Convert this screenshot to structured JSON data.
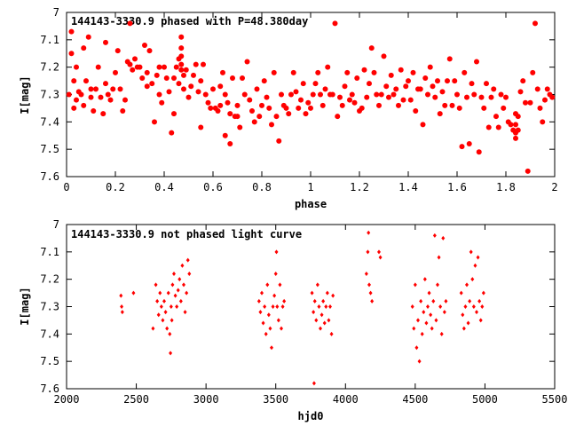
{
  "chart_data": [
    {
      "type": "scatter",
      "title": "144143-3330.9 phased with P=48.380day",
      "xlabel": "phase",
      "ylabel": "I[mag]",
      "xlim": [
        0,
        2
      ],
      "ylim": [
        7.6,
        7
      ],
      "y_inverted": true,
      "grid": false,
      "marker": "filled-circle",
      "color": "#ff0000",
      "x_ticks": [
        "0",
        "0.2",
        "0.4",
        "0.6",
        "0.8",
        "1",
        "1.2",
        "1.4",
        "1.6",
        "1.8",
        "2"
      ],
      "y_ticks": [
        "7",
        "7.1",
        "7.2",
        "7.3",
        "7.4",
        "7.5",
        "7.6"
      ],
      "points": [
        [
          0.01,
          7.3
        ],
        [
          0.02,
          7.07
        ],
        [
          0.02,
          7.15
        ],
        [
          0.03,
          7.25
        ],
        [
          0.03,
          7.35
        ],
        [
          0.04,
          7.2
        ],
        [
          0.04,
          7.32
        ],
        [
          0.05,
          7.29
        ],
        [
          0.06,
          7.3
        ],
        [
          0.07,
          7.34
        ],
        [
          0.07,
          7.13
        ],
        [
          0.08,
          7.25
        ],
        [
          0.09,
          7.09
        ],
        [
          0.1,
          7.28
        ],
        [
          0.1,
          7.31
        ],
        [
          0.11,
          7.36
        ],
        [
          0.12,
          7.28
        ],
        [
          0.13,
          7.2
        ],
        [
          0.14,
          7.31
        ],
        [
          0.15,
          7.37
        ],
        [
          0.16,
          7.11
        ],
        [
          0.16,
          7.26
        ],
        [
          0.17,
          7.3
        ],
        [
          0.18,
          7.32
        ],
        [
          0.19,
          7.28
        ],
        [
          0.2,
          7.22
        ],
        [
          0.21,
          7.14
        ],
        [
          0.22,
          7.28
        ],
        [
          0.23,
          7.36
        ],
        [
          0.24,
          7.32
        ],
        [
          0.25,
          7.18
        ],
        [
          0.26,
          7.19
        ],
        [
          0.26,
          7.04
        ],
        [
          0.27,
          7.21
        ],
        [
          0.28,
          7.17
        ],
        [
          0.29,
          7.2
        ],
        [
          0.3,
          7.2
        ],
        [
          0.31,
          7.24
        ],
        [
          0.32,
          7.12
        ],
        [
          0.33,
          7.27
        ],
        [
          0.33,
          7.22
        ],
        [
          0.34,
          7.14
        ],
        [
          0.35,
          7.26
        ],
        [
          0.36,
          7.4
        ],
        [
          0.37,
          7.23
        ],
        [
          0.38,
          7.2
        ],
        [
          0.38,
          7.3
        ],
        [
          0.39,
          7.33
        ],
        [
          0.4,
          7.2
        ],
        [
          0.41,
          7.24
        ],
        [
          0.42,
          7.29
        ],
        [
          0.43,
          7.44
        ],
        [
          0.44,
          7.24
        ],
        [
          0.44,
          7.37
        ],
        [
          0.45,
          7.2
        ],
        [
          0.46,
          7.17
        ],
        [
          0.46,
          7.26
        ],
        [
          0.47,
          7.09
        ],
        [
          0.47,
          7.13
        ],
        [
          0.47,
          7.16
        ],
        [
          0.47,
          7.19
        ],
        [
          0.47,
          7.21
        ],
        [
          0.48,
          7.23
        ],
        [
          0.48,
          7.28
        ],
        [
          0.49,
          7.21
        ],
        [
          0.5,
          7.31
        ],
        [
          0.51,
          7.27
        ],
        [
          0.52,
          7.23
        ],
        [
          0.53,
          7.19
        ],
        [
          0.54,
          7.29
        ],
        [
          0.55,
          7.25
        ],
        [
          0.55,
          7.42
        ],
        [
          0.56,
          7.19
        ],
        [
          0.57,
          7.3
        ],
        [
          0.58,
          7.33
        ],
        [
          0.59,
          7.35
        ],
        [
          0.6,
          7.28
        ],
        [
          0.61,
          7.35
        ],
        [
          0.62,
          7.36
        ],
        [
          0.63,
          7.27
        ],
        [
          0.63,
          7.34
        ],
        [
          0.64,
          7.22
        ],
        [
          0.65,
          7.3
        ],
        [
          0.65,
          7.45
        ],
        [
          0.66,
          7.33
        ],
        [
          0.67,
          7.37
        ],
        [
          0.67,
          7.48
        ],
        [
          0.68,
          7.24
        ],
        [
          0.69,
          7.38
        ],
        [
          0.7,
          7.38
        ],
        [
          0.7,
          7.34
        ],
        [
          0.71,
          7.42
        ],
        [
          0.72,
          7.24
        ],
        [
          0.73,
          7.3
        ],
        [
          0.74,
          7.18
        ],
        [
          0.75,
          7.32
        ],
        [
          0.76,
          7.36
        ],
        [
          0.77,
          7.4
        ],
        [
          0.78,
          7.28
        ],
        [
          0.79,
          7.38
        ],
        [
          0.8,
          7.34
        ],
        [
          0.81,
          7.25
        ],
        [
          0.82,
          7.31
        ],
        [
          0.83,
          7.35
        ],
        [
          0.84,
          7.41
        ],
        [
          0.85,
          7.22
        ],
        [
          0.86,
          7.38
        ],
        [
          0.87,
          7.47
        ],
        [
          0.88,
          7.3
        ],
        [
          0.89,
          7.34
        ],
        [
          0.9,
          7.35
        ],
        [
          0.91,
          7.37
        ],
        [
          0.92,
          7.3
        ],
        [
          0.93,
          7.22
        ],
        [
          0.94,
          7.29
        ],
        [
          0.95,
          7.35
        ],
        [
          0.96,
          7.32
        ],
        [
          0.97,
          7.26
        ],
        [
          0.98,
          7.37
        ],
        [
          0.99,
          7.33
        ],
        [
          1.0,
          7.35
        ],
        [
          1.01,
          7.3
        ],
        [
          1.02,
          7.26
        ],
        [
          1.03,
          7.22
        ],
        [
          1.04,
          7.3
        ],
        [
          1.05,
          7.34
        ],
        [
          1.06,
          7.28
        ],
        [
          1.07,
          7.2
        ],
        [
          1.08,
          7.3
        ],
        [
          1.09,
          7.3
        ],
        [
          1.1,
          7.04
        ],
        [
          1.11,
          7.38
        ],
        [
          1.12,
          7.31
        ],
        [
          1.13,
          7.34
        ],
        [
          1.14,
          7.27
        ],
        [
          1.15,
          7.22
        ],
        [
          1.16,
          7.32
        ],
        [
          1.17,
          7.3
        ],
        [
          1.18,
          7.33
        ],
        [
          1.19,
          7.24
        ],
        [
          1.2,
          7.36
        ],
        [
          1.21,
          7.35
        ],
        [
          1.22,
          7.21
        ],
        [
          1.23,
          7.31
        ],
        [
          1.24,
          7.26
        ],
        [
          1.25,
          7.13
        ],
        [
          1.26,
          7.22
        ],
        [
          1.27,
          7.3
        ],
        [
          1.28,
          7.34
        ],
        [
          1.29,
          7.3
        ],
        [
          1.3,
          7.16
        ],
        [
          1.31,
          7.27
        ],
        [
          1.32,
          7.31
        ],
        [
          1.33,
          7.23
        ],
        [
          1.34,
          7.3
        ],
        [
          1.35,
          7.28
        ],
        [
          1.36,
          7.34
        ],
        [
          1.37,
          7.21
        ],
        [
          1.38,
          7.32
        ],
        [
          1.39,
          7.27
        ],
        [
          1.4,
          7.25
        ],
        [
          1.41,
          7.32
        ],
        [
          1.42,
          7.22
        ],
        [
          1.43,
          7.36
        ],
        [
          1.44,
          7.28
        ],
        [
          1.45,
          7.28
        ],
        [
          1.46,
          7.41
        ],
        [
          1.47,
          7.24
        ],
        [
          1.48,
          7.3
        ],
        [
          1.49,
          7.2
        ],
        [
          1.5,
          7.27
        ],
        [
          1.51,
          7.31
        ],
        [
          1.52,
          7.25
        ],
        [
          1.53,
          7.37
        ],
        [
          1.54,
          7.29
        ],
        [
          1.55,
          7.34
        ],
        [
          1.56,
          7.25
        ],
        [
          1.57,
          7.17
        ],
        [
          1.58,
          7.34
        ],
        [
          1.59,
          7.25
        ],
        [
          1.6,
          7.3
        ],
        [
          1.61,
          7.35
        ],
        [
          1.62,
          7.49
        ],
        [
          1.63,
          7.22
        ],
        [
          1.64,
          7.31
        ],
        [
          1.65,
          7.48
        ],
        [
          1.66,
          7.26
        ],
        [
          1.67,
          7.3
        ],
        [
          1.68,
          7.18
        ],
        [
          1.69,
          7.51
        ],
        [
          1.7,
          7.31
        ],
        [
          1.71,
          7.35
        ],
        [
          1.72,
          7.26
        ],
        [
          1.73,
          7.42
        ],
        [
          1.74,
          7.31
        ],
        [
          1.75,
          7.28
        ],
        [
          1.76,
          7.38
        ],
        [
          1.77,
          7.42
        ],
        [
          1.78,
          7.3
        ],
        [
          1.79,
          7.35
        ],
        [
          1.8,
          7.31
        ],
        [
          1.81,
          7.4
        ],
        [
          1.82,
          7.41
        ],
        [
          1.83,
          7.43
        ],
        [
          1.84,
          7.37
        ],
        [
          1.84,
          7.41
        ],
        [
          1.84,
          7.44
        ],
        [
          1.84,
          7.46
        ],
        [
          1.85,
          7.38
        ],
        [
          1.85,
          7.43
        ],
        [
          1.86,
          7.29
        ],
        [
          1.87,
          7.25
        ],
        [
          1.88,
          7.33
        ],
        [
          1.89,
          7.58
        ],
        [
          1.9,
          7.33
        ],
        [
          1.91,
          7.22
        ],
        [
          1.92,
          7.04
        ],
        [
          1.93,
          7.28
        ],
        [
          1.94,
          7.35
        ],
        [
          1.95,
          7.4
        ],
        [
          1.96,
          7.32
        ],
        [
          1.97,
          7.28
        ],
        [
          1.98,
          7.3
        ],
        [
          1.99,
          7.31
        ]
      ]
    },
    {
      "type": "scatter",
      "title": "144143-3330.9 not phased light curve",
      "xlabel": "hjd0",
      "ylabel": "I[mag]",
      "xlim": [
        2000,
        5500
      ],
      "ylim": [
        7.6,
        7
      ],
      "y_inverted": true,
      "grid": false,
      "marker": "small-diamond",
      "color": "#ff0000",
      "x_ticks": [
        "2000",
        "2500",
        "3000",
        "3500",
        "4000",
        "4500",
        "5000",
        "5500"
      ],
      "y_ticks": [
        "7",
        "7.1",
        "7.2",
        "7.3",
        "7.4",
        "7.5",
        "7.6"
      ],
      "points": [
        [
          2390,
          7.26
        ],
        [
          2395,
          7.3
        ],
        [
          2400,
          7.32
        ],
        [
          2480,
          7.25
        ],
        [
          2620,
          7.38
        ],
        [
          2640,
          7.22
        ],
        [
          2650,
          7.28
        ],
        [
          2660,
          7.33
        ],
        [
          2670,
          7.25
        ],
        [
          2680,
          7.3
        ],
        [
          2690,
          7.35
        ],
        [
          2700,
          7.28
        ],
        [
          2710,
          7.32
        ],
        [
          2720,
          7.38
        ],
        [
          2730,
          7.25
        ],
        [
          2740,
          7.4
        ],
        [
          2745,
          7.47
        ],
        [
          2750,
          7.3
        ],
        [
          2755,
          7.35
        ],
        [
          2760,
          7.22
        ],
        [
          2770,
          7.18
        ],
        [
          2780,
          7.26
        ],
        [
          2790,
          7.3
        ],
        [
          2800,
          7.24
        ],
        [
          2810,
          7.2
        ],
        [
          2820,
          7.28
        ],
        [
          2830,
          7.15
        ],
        [
          2840,
          7.22
        ],
        [
          2850,
          7.32
        ],
        [
          2860,
          7.25
        ],
        [
          2870,
          7.13
        ],
        [
          2880,
          7.18
        ],
        [
          3380,
          7.28
        ],
        [
          3390,
          7.32
        ],
        [
          3400,
          7.25
        ],
        [
          3410,
          7.36
        ],
        [
          3420,
          7.3
        ],
        [
          3430,
          7.4
        ],
        [
          3440,
          7.22
        ],
        [
          3450,
          7.33
        ],
        [
          3460,
          7.38
        ],
        [
          3470,
          7.45
        ],
        [
          3480,
          7.3
        ],
        [
          3490,
          7.26
        ],
        [
          3500,
          7.18
        ],
        [
          3505,
          7.1
        ],
        [
          3510,
          7.3
        ],
        [
          3520,
          7.35
        ],
        [
          3530,
          7.22
        ],
        [
          3540,
          7.38
        ],
        [
          3550,
          7.3
        ],
        [
          3560,
          7.28
        ],
        [
          3760,
          7.25
        ],
        [
          3770,
          7.32
        ],
        [
          3775,
          7.58
        ],
        [
          3780,
          7.28
        ],
        [
          3790,
          7.35
        ],
        [
          3800,
          7.22
        ],
        [
          3810,
          7.3
        ],
        [
          3820,
          7.38
        ],
        [
          3830,
          7.33
        ],
        [
          3840,
          7.28
        ],
        [
          3850,
          7.36
        ],
        [
          3860,
          7.3
        ],
        [
          3870,
          7.25
        ],
        [
          3880,
          7.35
        ],
        [
          3890,
          7.3
        ],
        [
          3900,
          7.4
        ],
        [
          3910,
          7.26
        ],
        [
          4150,
          7.18
        ],
        [
          4160,
          7.1
        ],
        [
          4165,
          7.03
        ],
        [
          4170,
          7.22
        ],
        [
          4180,
          7.25
        ],
        [
          4190,
          7.28
        ],
        [
          4240,
          7.1
        ],
        [
          4250,
          7.12
        ],
        [
          4480,
          7.3
        ],
        [
          4490,
          7.38
        ],
        [
          4500,
          7.22
        ],
        [
          4510,
          7.45
        ],
        [
          4520,
          7.35
        ],
        [
          4530,
          7.5
        ],
        [
          4540,
          7.28
        ],
        [
          4550,
          7.4
        ],
        [
          4560,
          7.32
        ],
        [
          4570,
          7.2
        ],
        [
          4580,
          7.36
        ],
        [
          4590,
          7.3
        ],
        [
          4600,
          7.25
        ],
        [
          4610,
          7.33
        ],
        [
          4620,
          7.38
        ],
        [
          4630,
          7.28
        ],
        [
          4640,
          7.04
        ],
        [
          4650,
          7.35
        ],
        [
          4660,
          7.22
        ],
        [
          4670,
          7.12
        ],
        [
          4680,
          7.3
        ],
        [
          4690,
          7.4
        ],
        [
          4700,
          7.05
        ],
        [
          4710,
          7.32
        ],
        [
          4720,
          7.28
        ],
        [
          4830,
          7.25
        ],
        [
          4840,
          7.33
        ],
        [
          4850,
          7.38
        ],
        [
          4860,
          7.3
        ],
        [
          4870,
          7.22
        ],
        [
          4880,
          7.36
        ],
        [
          4890,
          7.28
        ],
        [
          4900,
          7.1
        ],
        [
          4910,
          7.2
        ],
        [
          4920,
          7.3
        ],
        [
          4930,
          7.15
        ],
        [
          4940,
          7.32
        ],
        [
          4950,
          7.12
        ],
        [
          4960,
          7.28
        ],
        [
          4970,
          7.35
        ],
        [
          4980,
          7.3
        ],
        [
          4990,
          7.25
        ]
      ]
    }
  ]
}
